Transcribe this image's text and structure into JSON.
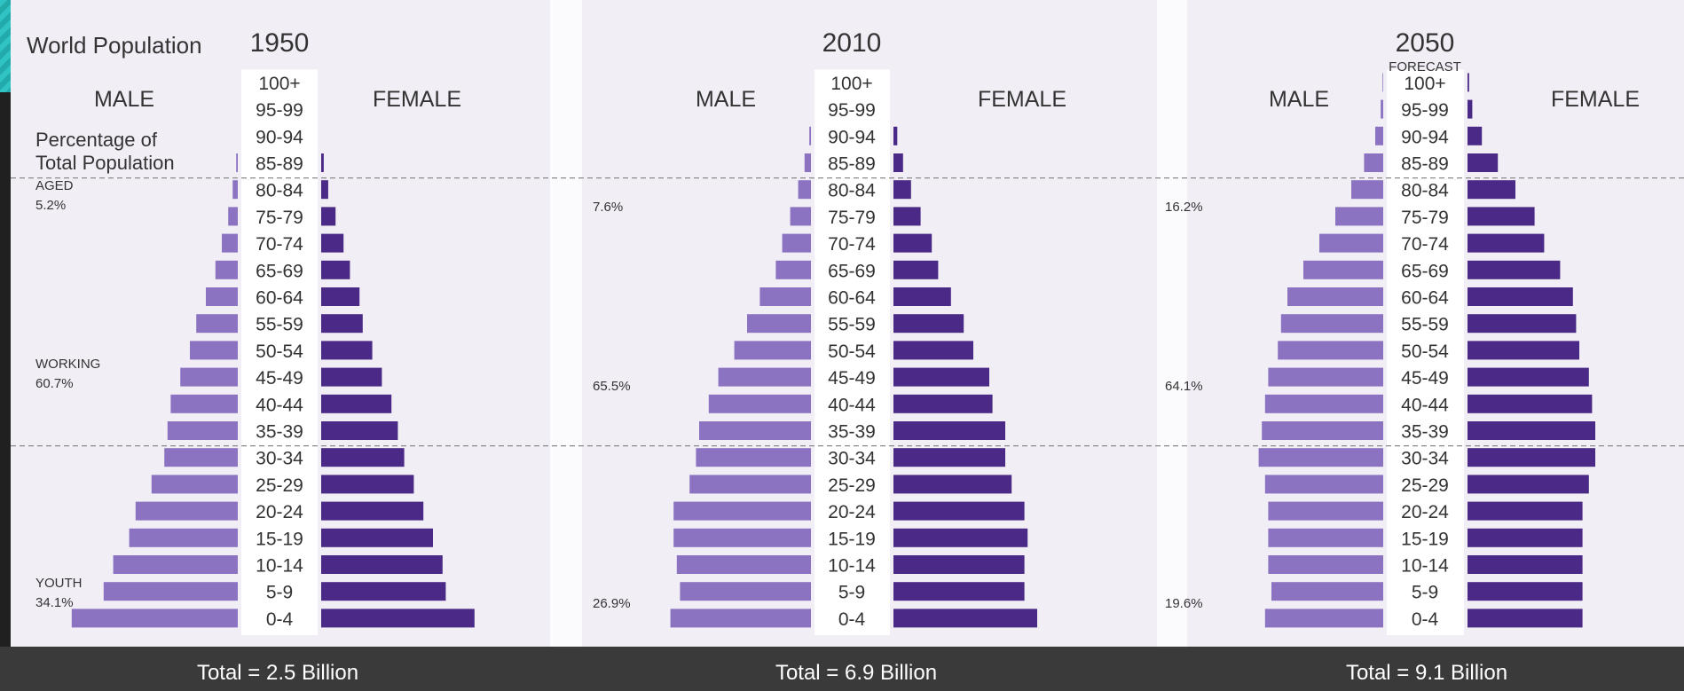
{
  "title": "World Population",
  "side_labels": {
    "pct_line1": "Percentage of",
    "pct_line2": "Total Population"
  },
  "colors": {
    "male": "#8c73c2",
    "female": "#4a2a86",
    "panel": "#f2eef6"
  },
  "chart_data": [
    {
      "type": "bar",
      "year": "1950",
      "subtitle": "",
      "male_label": "MALE",
      "female_label": "FEMALE",
      "categories": [
        "0-4",
        "5-9",
        "10-14",
        "15-19",
        "20-24",
        "25-29",
        "30-34",
        "35-39",
        "40-44",
        "45-49",
        "50-54",
        "55-59",
        "60-64",
        "65-69",
        "70-74",
        "75-79",
        "80-84",
        "85-89",
        "90-94",
        "95-99",
        "100+"
      ],
      "series": [
        {
          "name": "MALE",
          "values": [
            5.2,
            4.2,
            3.9,
            3.4,
            3.2,
            2.7,
            2.3,
            2.2,
            2.1,
            1.8,
            1.5,
            1.3,
            1.0,
            0.7,
            0.5,
            0.3,
            0.16,
            0.05,
            0,
            0,
            0
          ]
        },
        {
          "name": "FEMALE",
          "values": [
            4.8,
            3.9,
            3.8,
            3.5,
            3.2,
            2.9,
            2.6,
            2.4,
            2.2,
            1.9,
            1.6,
            1.3,
            1.2,
            0.9,
            0.7,
            0.45,
            0.22,
            0.08,
            0,
            0,
            0
          ]
        }
      ],
      "groups": [
        {
          "name": "AGED",
          "pct": "5.2%"
        },
        {
          "name": "WORKING",
          "pct": "60.7%"
        },
        {
          "name": "YOUTH",
          "pct": "34.1%"
        }
      ],
      "total": "Total = 2.5 Billion"
    },
    {
      "type": "bar",
      "year": "2010",
      "subtitle": "",
      "male_label": "MALE",
      "female_label": "FEMALE",
      "categories": [
        "0-4",
        "5-9",
        "10-14",
        "15-19",
        "20-24",
        "25-29",
        "30-34",
        "35-39",
        "40-44",
        "45-49",
        "50-54",
        "55-59",
        "60-64",
        "65-69",
        "70-74",
        "75-79",
        "80-84",
        "85-89",
        "90-94",
        "95-99",
        "100+"
      ],
      "series": [
        {
          "name": "MALE",
          "values": [
            4.4,
            4.1,
            4.2,
            4.3,
            4.3,
            3.8,
            3.6,
            3.5,
            3.2,
            2.9,
            2.4,
            2.0,
            1.6,
            1.1,
            0.9,
            0.65,
            0.4,
            0.2,
            0.05,
            0,
            0
          ]
        },
        {
          "name": "FEMALE",
          "values": [
            4.5,
            4.1,
            4.1,
            4.2,
            4.1,
            3.7,
            3.5,
            3.5,
            3.1,
            3.0,
            2.5,
            2.2,
            1.8,
            1.4,
            1.2,
            0.85,
            0.55,
            0.3,
            0.12,
            0,
            0
          ]
        }
      ],
      "groups": [
        {
          "name": "",
          "pct": "7.6%"
        },
        {
          "name": "",
          "pct": "65.5%"
        },
        {
          "name": "",
          "pct": "26.9%"
        }
      ],
      "total": "Total = 6.9 Billion"
    },
    {
      "type": "bar",
      "year": "2050",
      "subtitle": "FORECAST",
      "male_label": "MALE",
      "female_label": "FEMALE",
      "categories": [
        "0-4",
        "5-9",
        "10-14",
        "15-19",
        "20-24",
        "25-29",
        "30-34",
        "35-39",
        "40-44",
        "45-49",
        "50-54",
        "55-59",
        "60-64",
        "65-69",
        "70-74",
        "75-79",
        "80-84",
        "85-89",
        "90-94",
        "95-99",
        "100+"
      ],
      "series": [
        {
          "name": "MALE",
          "values": [
            3.7,
            3.5,
            3.6,
            3.6,
            3.6,
            3.7,
            3.9,
            3.8,
            3.7,
            3.6,
            3.3,
            3.2,
            3.0,
            2.5,
            2.0,
            1.5,
            1.0,
            0.6,
            0.25,
            0.08,
            0.02
          ]
        },
        {
          "name": "FEMALE",
          "values": [
            3.6,
            3.6,
            3.6,
            3.6,
            3.6,
            3.8,
            4.0,
            4.0,
            3.9,
            3.8,
            3.5,
            3.4,
            3.3,
            2.9,
            2.4,
            2.1,
            1.5,
            0.95,
            0.45,
            0.15,
            0.05
          ]
        }
      ],
      "groups": [
        {
          "name": "",
          "pct": "16.2%"
        },
        {
          "name": "",
          "pct": "64.1%"
        },
        {
          "name": "",
          "pct": "19.6%"
        }
      ],
      "total": "Total = 9.1 Billion"
    }
  ]
}
